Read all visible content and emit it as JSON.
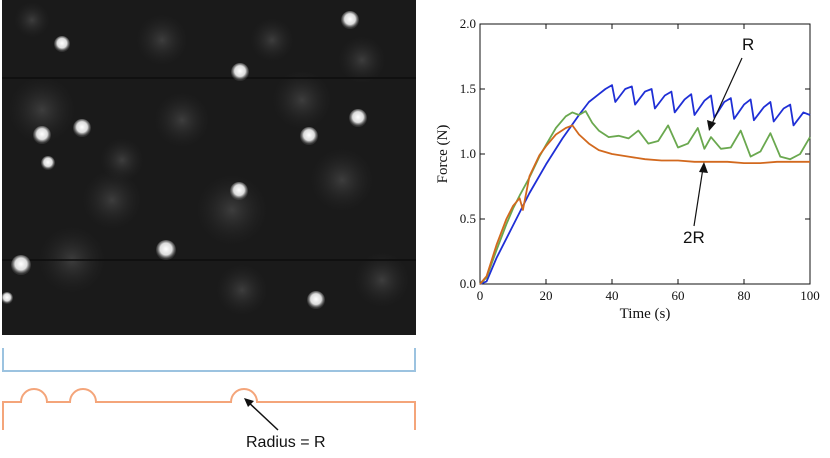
{
  "colors": {
    "series_blue": "#1f2fd6",
    "series_green": "#6aa84f",
    "series_orange": "#d2691e",
    "box_blue": "#9cc3e0",
    "box_orange": "#f4a57a",
    "photo_bg": "#1a1a1a"
  },
  "schematic": {
    "radius_label": "Radius = R"
  },
  "chart_data": {
    "type": "line",
    "title": "",
    "xlabel": "Time (s)",
    "ylabel": "Force (N)",
    "xlim": [
      0,
      100
    ],
    "ylim": [
      0.0,
      2.0
    ],
    "xticks": [
      "0",
      "20",
      "40",
      "60",
      "80",
      "100"
    ],
    "yticks": [
      "0.0",
      "0.5",
      "1.0",
      "1.5",
      "2.0"
    ],
    "grid": false,
    "annotations": [
      "R",
      "2R"
    ],
    "series": [
      {
        "color": "#1f2fd6",
        "x": [
          0,
          2,
          5,
          10,
          15,
          20,
          25,
          30,
          33,
          36,
          38,
          40,
          41,
          44,
          46,
          47,
          50,
          52,
          53,
          56,
          58,
          59,
          62,
          64,
          65,
          68,
          70,
          71,
          74,
          76,
          77,
          80,
          82,
          83,
          86,
          88,
          89,
          92,
          94,
          95,
          98,
          100
        ],
        "y": [
          0.0,
          0.02,
          0.2,
          0.45,
          0.7,
          0.92,
          1.12,
          1.3,
          1.4,
          1.46,
          1.5,
          1.53,
          1.4,
          1.5,
          1.52,
          1.38,
          1.48,
          1.5,
          1.35,
          1.45,
          1.48,
          1.32,
          1.42,
          1.46,
          1.3,
          1.41,
          1.45,
          1.28,
          1.4,
          1.43,
          1.27,
          1.38,
          1.42,
          1.26,
          1.36,
          1.4,
          1.25,
          1.35,
          1.38,
          1.22,
          1.32,
          1.3
        ]
      },
      {
        "color": "#6aa84f",
        "x": [
          0,
          2,
          5,
          8,
          10,
          12,
          15,
          18,
          20,
          23,
          26,
          28,
          30,
          32,
          34,
          36,
          39,
          42,
          45,
          48,
          51,
          54,
          57,
          60,
          63,
          66,
          68,
          70,
          73,
          76,
          79,
          82,
          85,
          88,
          91,
          94,
          97,
          100
        ],
        "y": [
          0.0,
          0.05,
          0.26,
          0.46,
          0.58,
          0.68,
          0.82,
          0.98,
          1.07,
          1.2,
          1.29,
          1.32,
          1.3,
          1.33,
          1.24,
          1.18,
          1.13,
          1.14,
          1.12,
          1.18,
          1.08,
          1.1,
          1.22,
          1.05,
          1.08,
          1.2,
          1.04,
          1.13,
          1.04,
          1.05,
          1.18,
          0.98,
          1.02,
          1.16,
          0.98,
          0.96,
          1.0,
          1.13
        ]
      },
      {
        "color": "#d2691e",
        "x": [
          0,
          2,
          5,
          8,
          10,
          12,
          13,
          15,
          18,
          20,
          23,
          26,
          28,
          30,
          33,
          36,
          40,
          45,
          50,
          55,
          60,
          65,
          70,
          75,
          80,
          85,
          90,
          95,
          100
        ],
        "y": [
          0.0,
          0.06,
          0.3,
          0.5,
          0.6,
          0.66,
          0.57,
          0.83,
          0.99,
          1.06,
          1.15,
          1.2,
          1.22,
          1.15,
          1.08,
          1.03,
          1.0,
          0.98,
          0.96,
          0.95,
          0.95,
          0.94,
          0.94,
          0.94,
          0.93,
          0.93,
          0.94,
          0.94,
          0.94
        ]
      }
    ]
  }
}
